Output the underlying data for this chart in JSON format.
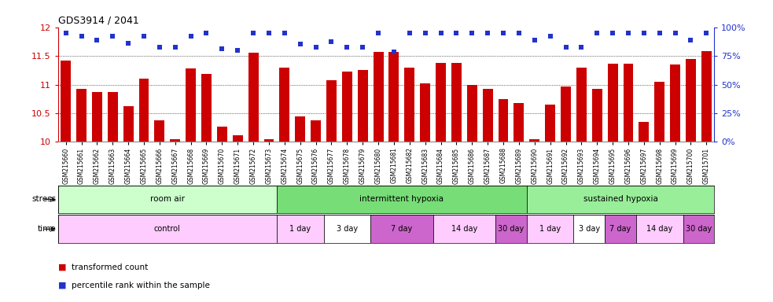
{
  "title": "GDS3914 / 2041",
  "samples": [
    "GSM215660",
    "GSM215661",
    "GSM215662",
    "GSM215663",
    "GSM215664",
    "GSM215665",
    "GSM215666",
    "GSM215667",
    "GSM215668",
    "GSM215669",
    "GSM215670",
    "GSM215671",
    "GSM215672",
    "GSM215673",
    "GSM215674",
    "GSM215675",
    "GSM215676",
    "GSM215677",
    "GSM215678",
    "GSM215679",
    "GSM215680",
    "GSM215681",
    "GSM215682",
    "GSM215683",
    "GSM215684",
    "GSM215685",
    "GSM215686",
    "GSM215687",
    "GSM215688",
    "GSM215689",
    "GSM215690",
    "GSM215691",
    "GSM215692",
    "GSM215693",
    "GSM215694",
    "GSM215695",
    "GSM215696",
    "GSM215697",
    "GSM215698",
    "GSM215699",
    "GSM215700",
    "GSM215701"
  ],
  "bar_values": [
    11.42,
    10.93,
    10.87,
    10.87,
    10.62,
    11.1,
    10.38,
    10.05,
    11.28,
    11.18,
    10.27,
    10.12,
    11.55,
    10.05,
    11.3,
    10.45,
    10.38,
    11.08,
    11.22,
    11.25,
    11.57,
    11.57,
    11.3,
    11.02,
    11.38,
    11.38,
    11.0,
    10.92,
    10.75,
    10.68,
    10.05,
    10.65,
    10.97,
    11.3,
    10.92,
    11.37,
    11.37,
    10.35,
    11.05,
    11.35,
    11.45,
    11.58
  ],
  "dot_values": [
    11.9,
    11.85,
    11.78,
    11.85,
    11.72,
    11.85,
    11.65,
    11.65,
    11.85,
    11.9,
    11.63,
    11.6,
    11.9,
    11.9,
    11.9,
    11.7,
    11.65,
    11.75,
    11.65,
    11.65,
    11.9,
    11.57,
    11.9,
    11.9,
    11.9,
    11.9,
    11.9,
    11.9,
    11.9,
    11.9,
    11.78,
    11.85,
    11.65,
    11.65,
    11.9,
    11.9,
    11.9,
    11.9,
    11.9,
    11.9,
    11.78,
    11.9
  ],
  "ylim": [
    10.0,
    12.0
  ],
  "yticks": [
    10.0,
    10.5,
    11.0,
    11.5,
    12.0
  ],
  "ytick_labels": [
    "10",
    "10.5",
    "11",
    "11.5",
    "12"
  ],
  "grid_values": [
    10.5,
    11.0,
    11.5
  ],
  "bar_color": "#cc0000",
  "dot_color": "#2233cc",
  "right_yticks": [
    0,
    25,
    50,
    75,
    100
  ],
  "right_ytick_labels": [
    "0%",
    "25%",
    "50%",
    "75%",
    "100%"
  ],
  "stress_row": [
    {
      "label": "room air",
      "start": 0,
      "end": 14,
      "color": "#ccffcc"
    },
    {
      "label": "intermittent hypoxia",
      "start": 14,
      "end": 30,
      "color": "#77dd77"
    },
    {
      "label": "sustained hypoxia",
      "start": 30,
      "end": 42,
      "color": "#99ee99"
    }
  ],
  "time_row": [
    {
      "label": "control",
      "start": 0,
      "end": 14,
      "color": "#ffccff"
    },
    {
      "label": "1 day",
      "start": 14,
      "end": 17,
      "color": "#ffccff"
    },
    {
      "label": "3 day",
      "start": 17,
      "end": 20,
      "color": "#ffffff"
    },
    {
      "label": "7 day",
      "start": 20,
      "end": 24,
      "color": "#cc66cc"
    },
    {
      "label": "14 day",
      "start": 24,
      "end": 28,
      "color": "#ffccff"
    },
    {
      "label": "30 day",
      "start": 28,
      "end": 30,
      "color": "#cc66cc"
    },
    {
      "label": "1 day",
      "start": 30,
      "end": 33,
      "color": "#ffccff"
    },
    {
      "label": "3 day",
      "start": 33,
      "end": 35,
      "color": "#ffffff"
    },
    {
      "label": "7 day",
      "start": 35,
      "end": 37,
      "color": "#cc66cc"
    },
    {
      "label": "14 day",
      "start": 37,
      "end": 40,
      "color": "#ffccff"
    },
    {
      "label": "30 day",
      "start": 40,
      "end": 42,
      "color": "#cc66cc"
    }
  ],
  "stress_label": "stress",
  "time_label": "time",
  "legend_bar": "transformed count",
  "legend_dot": "percentile rank within the sample",
  "fig_width": 9.83,
  "fig_height": 3.84,
  "dpi": 100
}
